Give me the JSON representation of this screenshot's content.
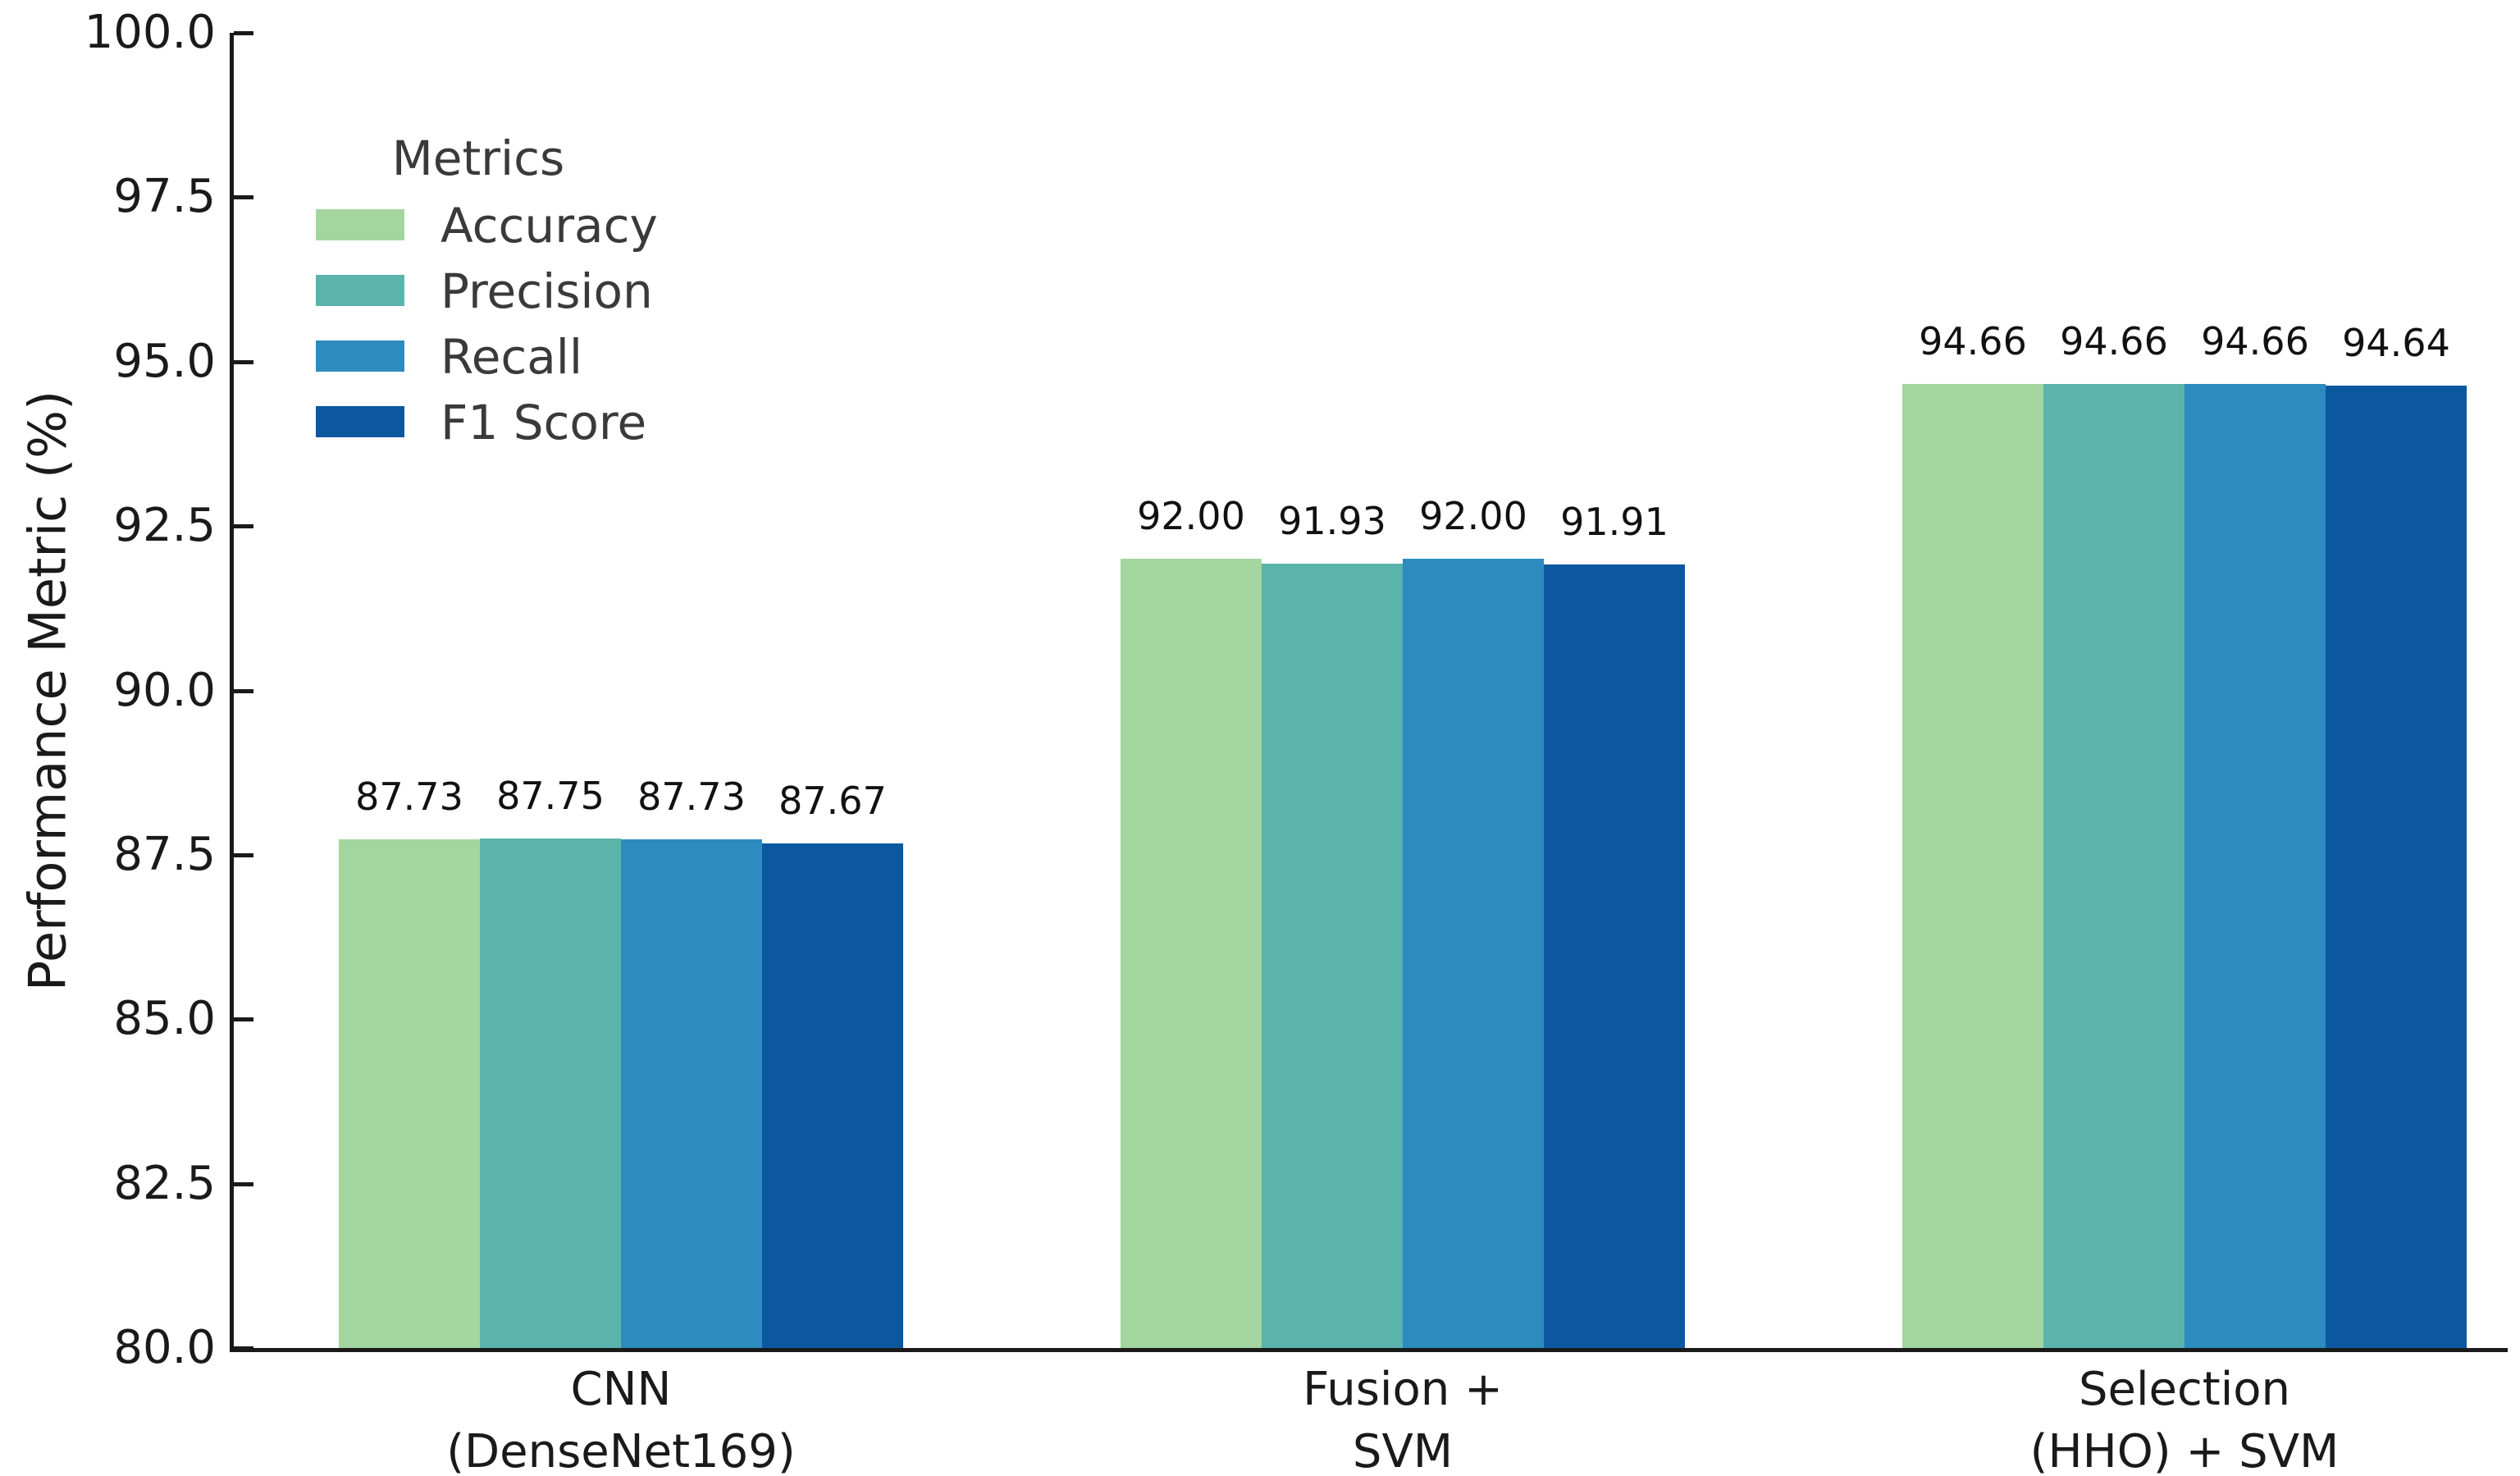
{
  "chart_data": {
    "type": "bar",
    "title": "",
    "xlabel": "",
    "ylabel": "Performance Metric (%)",
    "ylim": [
      80.0,
      100.0
    ],
    "yticks": [
      80.0,
      82.5,
      85.0,
      87.5,
      90.0,
      92.5,
      95.0,
      97.5,
      100.0
    ],
    "ytick_decimals": 1,
    "value_label_decimals": 2,
    "grid": false,
    "legend_title": "Metrics",
    "legend_position": "upper left",
    "categories": [
      "CNN\n(DenseNet169)",
      "Fusion +\nSVM",
      "Selection\n(HHO) + SVM"
    ],
    "series": [
      {
        "name": "Accuracy",
        "color": "#a3d69e",
        "values": [
          87.73,
          92.0,
          94.66
        ]
      },
      {
        "name": "Precision",
        "color": "#5ab4ac",
        "values": [
          87.75,
          91.93,
          94.66
        ]
      },
      {
        "name": "Recall",
        "color": "#2d8bc0",
        "values": [
          87.73,
          92.0,
          94.66
        ]
      },
      {
        "name": "F1 Score",
        "color": "#0c58a0",
        "values": [
          87.67,
          91.91,
          94.64
        ]
      }
    ],
    "text_color": "#1a1a1a",
    "axis_color": "#1a1a1a",
    "background_color": "#ffffff"
  }
}
